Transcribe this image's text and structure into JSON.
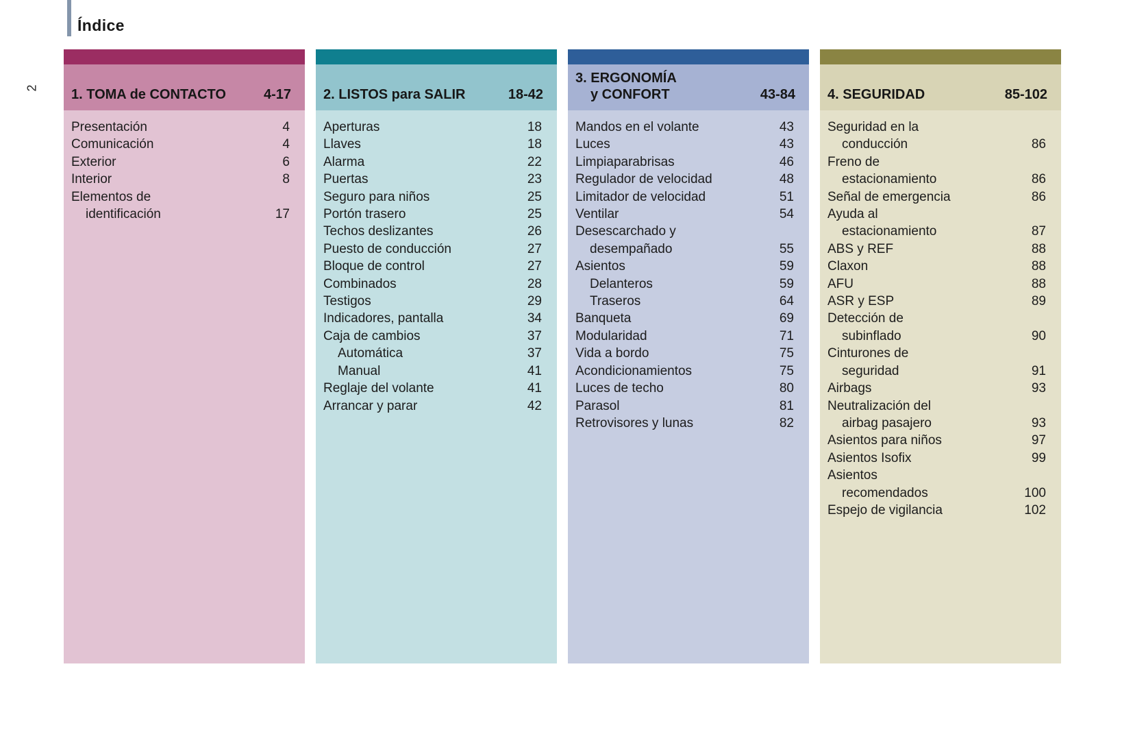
{
  "page": {
    "title": "Índice",
    "page_number": "2",
    "accent_bar_color": "#8495AB"
  },
  "sections": [
    {
      "id": "toma-de-contacto",
      "title": "1. TOMA de CONTACTO",
      "title_line2": "",
      "page_range": "4-17",
      "colors": {
        "strip": "#9B2D62",
        "header": "#C687A6",
        "body": "#E2C3D3"
      },
      "items": [
        {
          "label": "Presentación",
          "page": "4",
          "indent": 0
        },
        {
          "label": "Comunicación",
          "page": "4",
          "indent": 0
        },
        {
          "label": "Exterior",
          "page": "6",
          "indent": 0
        },
        {
          "label": "Interior",
          "page": "8",
          "indent": 0
        },
        {
          "label": "Elementos de",
          "page": "",
          "indent": 0
        },
        {
          "label": "identificación",
          "page": "17",
          "indent": 1
        }
      ]
    },
    {
      "id": "listos-para-salir",
      "title": "2. LISTOS para SALIR",
      "title_line2": "",
      "page_range": "18-42",
      "colors": {
        "strip": "#0F7F8F",
        "header": "#92C4CD",
        "body": "#C3E0E3"
      },
      "items": [
        {
          "label": "Aperturas",
          "page": "18",
          "indent": 0
        },
        {
          "label": "Llaves",
          "page": "18",
          "indent": 0
        },
        {
          "label": "Alarma",
          "page": "22",
          "indent": 0
        },
        {
          "label": "Puertas",
          "page": "23",
          "indent": 0
        },
        {
          "label": "Seguro para niños",
          "page": "25",
          "indent": 0
        },
        {
          "label": "Portón trasero",
          "page": "25",
          "indent": 0
        },
        {
          "label": "Techos deslizantes",
          "page": "26",
          "indent": 0
        },
        {
          "label": "Puesto de conducción",
          "page": "27",
          "indent": 0
        },
        {
          "label": "Bloque de control",
          "page": "27",
          "indent": 0
        },
        {
          "label": "Combinados",
          "page": "28",
          "indent": 0
        },
        {
          "label": "Testigos",
          "page": "29",
          "indent": 0
        },
        {
          "label": "Indicadores, pantalla",
          "page": "34",
          "indent": 0
        },
        {
          "label": "Caja de cambios",
          "page": "37",
          "indent": 0
        },
        {
          "label": "Automática",
          "page": "37",
          "indent": 1
        },
        {
          "label": "Manual",
          "page": "41",
          "indent": 1
        },
        {
          "label": "Reglaje del volante",
          "page": "41",
          "indent": 0
        },
        {
          "label": "Arrancar y parar",
          "page": "42",
          "indent": 0
        }
      ]
    },
    {
      "id": "ergonomia-y-confort",
      "title": "3. ERGONOMÍA",
      "title_line2": "y CONFORT",
      "page_range": "43-84",
      "colors": {
        "strip": "#2E5E99",
        "header": "#A6B2D3",
        "body": "#C6CDE1"
      },
      "items": [
        {
          "label": "Mandos en el volante",
          "page": "43",
          "indent": 0
        },
        {
          "label": "Luces",
          "page": "43",
          "indent": 0
        },
        {
          "label": "Limpiaparabrisas",
          "page": "46",
          "indent": 0
        },
        {
          "label": "Regulador de velocidad",
          "page": "48",
          "indent": 0
        },
        {
          "label": "Limitador de velocidad",
          "page": "51",
          "indent": 0
        },
        {
          "label": "Ventilar",
          "page": "54",
          "indent": 0
        },
        {
          "label": "Desescarchado y",
          "page": "",
          "indent": 0
        },
        {
          "label": "desempañado",
          "page": "55",
          "indent": 1
        },
        {
          "label": "Asientos",
          "page": "59",
          "indent": 0
        },
        {
          "label": "Delanteros",
          "page": "59",
          "indent": 1
        },
        {
          "label": "Traseros",
          "page": "64",
          "indent": 1
        },
        {
          "label": "Banqueta",
          "page": "69",
          "indent": 0
        },
        {
          "label": "Modularidad",
          "page": "71",
          "indent": 0
        },
        {
          "label": "Vida a bordo",
          "page": "75",
          "indent": 0
        },
        {
          "label": "Acondicionamientos",
          "page": "75",
          "indent": 0
        },
        {
          "label": "Luces de techo",
          "page": "80",
          "indent": 0
        },
        {
          "label": "Parasol",
          "page": "81",
          "indent": 0
        },
        {
          "label": "Retrovisores y lunas",
          "page": "82",
          "indent": 0
        }
      ]
    },
    {
      "id": "seguridad",
      "title": "4. SEGURIDAD",
      "title_line2": "",
      "page_range": "85-102",
      "colors": {
        "strip": "#8A8443",
        "header": "#D8D4B5",
        "body": "#E4E1CA"
      },
      "items": [
        {
          "label": "Seguridad en la",
          "page": "",
          "indent": 0
        },
        {
          "label": "conducción",
          "page": "86",
          "indent": 1
        },
        {
          "label": "Freno de",
          "page": "",
          "indent": 0
        },
        {
          "label": "estacionamiento",
          "page": "86",
          "indent": 1
        },
        {
          "label": "Señal de emergencia",
          "page": "86",
          "indent": 0
        },
        {
          "label": "Ayuda al",
          "page": "",
          "indent": 0
        },
        {
          "label": "estacionamiento",
          "page": "87",
          "indent": 1
        },
        {
          "label": "ABS y REF",
          "page": "88",
          "indent": 0
        },
        {
          "label": "Claxon",
          "page": "88",
          "indent": 0
        },
        {
          "label": "AFU",
          "page": "88",
          "indent": 0
        },
        {
          "label": "ASR y ESP",
          "page": "89",
          "indent": 0
        },
        {
          "label": "Detección de",
          "page": "",
          "indent": 0
        },
        {
          "label": "subinflado",
          "page": "90",
          "indent": 1
        },
        {
          "label": "Cinturones de",
          "page": "",
          "indent": 0
        },
        {
          "label": "seguridad",
          "page": "91",
          "indent": 1
        },
        {
          "label": "Airbags",
          "page": "93",
          "indent": 0
        },
        {
          "label": "Neutralización del",
          "page": "",
          "indent": 0
        },
        {
          "label": "airbag pasajero",
          "page": "93",
          "indent": 1
        },
        {
          "label": "Asientos para niños",
          "page": "97",
          "indent": 0
        },
        {
          "label": "Asientos Isofix",
          "page": "99",
          "indent": 0
        },
        {
          "label": "Asientos",
          "page": "",
          "indent": 0
        },
        {
          "label": "recomendados",
          "page": "100",
          "indent": 1
        },
        {
          "label": "Espejo de vigilancia",
          "page": "102",
          "indent": 0
        }
      ]
    }
  ]
}
